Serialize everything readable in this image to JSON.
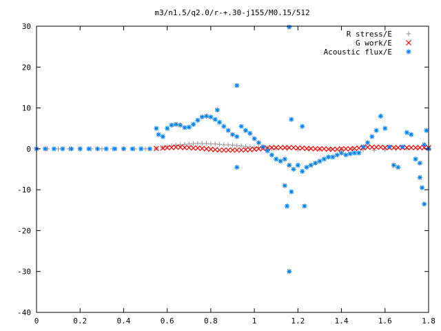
{
  "chart_data": {
    "type": "scatter",
    "title": "m3/n1.5/q2.0/r-+.30-j155/M0.15/512",
    "xlabel": "",
    "ylabel": "",
    "xlim": [
      0,
      1.8
    ],
    "ylim": [
      -40,
      30
    ],
    "x_ticks": [
      "0",
      "0.2",
      "0.4",
      "0.6",
      "0.8",
      "1",
      "1.2",
      "1.4",
      "1.6",
      "1.8"
    ],
    "x_tick_values": [
      0,
      0.2,
      0.4,
      0.6,
      0.8,
      1.0,
      1.2,
      1.4,
      1.6,
      1.8
    ],
    "y_ticks": [
      "30",
      "20",
      "10",
      "0",
      "-10",
      "-20",
      "-30",
      "-40"
    ],
    "y_tick_values": [
      30,
      20,
      10,
      0,
      -10,
      -20,
      -30,
      -40
    ],
    "grid": false,
    "legend_position": "top-right",
    "series": [
      {
        "name": "R stress/E",
        "marker": "+",
        "color": "#a0a0a0",
        "points": [
          [
            0.0,
            0
          ],
          [
            0.05,
            0
          ],
          [
            0.1,
            0
          ],
          [
            0.15,
            0
          ],
          [
            0.2,
            0
          ],
          [
            0.25,
            0
          ],
          [
            0.3,
            0
          ],
          [
            0.35,
            0
          ],
          [
            0.4,
            0
          ],
          [
            0.45,
            0
          ],
          [
            0.5,
            0
          ],
          [
            0.55,
            0.1
          ],
          [
            0.58,
            0.3
          ],
          [
            0.6,
            0.5
          ],
          [
            0.62,
            0.7
          ],
          [
            0.64,
            0.9
          ],
          [
            0.66,
            1.0
          ],
          [
            0.68,
            1.1
          ],
          [
            0.7,
            1.2
          ],
          [
            0.72,
            1.3
          ],
          [
            0.74,
            1.3
          ],
          [
            0.76,
            1.3
          ],
          [
            0.78,
            1.3
          ],
          [
            0.8,
            1.2
          ],
          [
            0.82,
            1.2
          ],
          [
            0.84,
            1.1
          ],
          [
            0.86,
            1.0
          ],
          [
            0.88,
            1.0
          ],
          [
            0.9,
            0.9
          ],
          [
            0.92,
            0.8
          ],
          [
            0.94,
            0.7
          ],
          [
            0.96,
            0.6
          ],
          [
            0.98,
            0.5
          ],
          [
            1.0,
            0.4
          ],
          [
            1.02,
            0.3
          ],
          [
            1.04,
            0.2
          ],
          [
            1.06,
            0.2
          ],
          [
            1.08,
            0.1
          ],
          [
            1.1,
            0.1
          ],
          [
            1.15,
            0.0
          ],
          [
            1.2,
            -0.1
          ],
          [
            1.25,
            -0.1
          ],
          [
            1.3,
            -0.1
          ],
          [
            1.35,
            -0.1
          ],
          [
            1.4,
            -0.1
          ],
          [
            1.45,
            0.0
          ],
          [
            1.5,
            -0.2
          ],
          [
            1.55,
            -0.3
          ],
          [
            1.6,
            -0.2
          ],
          [
            1.65,
            0.0
          ],
          [
            1.7,
            0.1
          ],
          [
            1.75,
            0.1
          ],
          [
            1.8,
            0.1
          ]
        ]
      },
      {
        "name": "G work/E",
        "marker": "x",
        "color": "#ff0000",
        "points": [
          [
            0.55,
            0.1
          ],
          [
            0.58,
            0.2
          ],
          [
            0.6,
            0.3
          ],
          [
            0.62,
            0.3
          ],
          [
            0.64,
            0.4
          ],
          [
            0.66,
            0.4
          ],
          [
            0.68,
            0.3
          ],
          [
            0.7,
            0.3
          ],
          [
            0.72,
            0.2
          ],
          [
            0.74,
            0.2
          ],
          [
            0.76,
            0.1
          ],
          [
            0.78,
            0.0
          ],
          [
            0.8,
            -0.1
          ],
          [
            0.82,
            -0.2
          ],
          [
            0.84,
            -0.3
          ],
          [
            0.86,
            -0.3
          ],
          [
            0.88,
            -0.3
          ],
          [
            0.9,
            -0.3
          ],
          [
            0.92,
            -0.3
          ],
          [
            0.94,
            -0.3
          ],
          [
            0.96,
            -0.2
          ],
          [
            0.98,
            -0.2
          ],
          [
            1.0,
            -0.1
          ],
          [
            1.02,
            0.0
          ],
          [
            1.04,
            0.1
          ],
          [
            1.06,
            0.2
          ],
          [
            1.08,
            0.3
          ],
          [
            1.1,
            0.3
          ],
          [
            1.12,
            0.3
          ],
          [
            1.14,
            0.3
          ],
          [
            1.16,
            0.3
          ],
          [
            1.18,
            0.3
          ],
          [
            1.2,
            0.2
          ],
          [
            1.22,
            0.2
          ],
          [
            1.24,
            0.1
          ],
          [
            1.26,
            0.1
          ],
          [
            1.28,
            0.0
          ],
          [
            1.3,
            0.0
          ],
          [
            1.32,
            0.0
          ],
          [
            1.34,
            -0.1
          ],
          [
            1.36,
            -0.1
          ],
          [
            1.38,
            -0.1
          ],
          [
            1.4,
            0.0
          ],
          [
            1.42,
            0.0
          ],
          [
            1.44,
            0.0
          ],
          [
            1.46,
            0.1
          ],
          [
            1.48,
            0.2
          ],
          [
            1.5,
            0.3
          ],
          [
            1.52,
            0.4
          ],
          [
            1.54,
            0.4
          ],
          [
            1.56,
            0.4
          ],
          [
            1.58,
            0.4
          ],
          [
            1.6,
            0.3
          ],
          [
            1.62,
            0.3
          ],
          [
            1.64,
            0.3
          ],
          [
            1.66,
            0.3
          ],
          [
            1.68,
            0.3
          ],
          [
            1.7,
            0.3
          ],
          [
            1.72,
            0.3
          ],
          [
            1.74,
            0.3
          ],
          [
            1.76,
            0.3
          ],
          [
            1.78,
            0.3
          ],
          [
            1.8,
            0.3
          ]
        ]
      },
      {
        "name": "Acoustic flux/E",
        "marker": "*",
        "color": "#0080ff",
        "points": [
          [
            0.0,
            0
          ],
          [
            0.04,
            0
          ],
          [
            0.08,
            0
          ],
          [
            0.12,
            0
          ],
          [
            0.16,
            0
          ],
          [
            0.2,
            0
          ],
          [
            0.24,
            0
          ],
          [
            0.28,
            0
          ],
          [
            0.32,
            0
          ],
          [
            0.36,
            0
          ],
          [
            0.4,
            0
          ],
          [
            0.44,
            0
          ],
          [
            0.48,
            0
          ],
          [
            0.52,
            0
          ],
          [
            0.55,
            5.0
          ],
          [
            0.56,
            3.5
          ],
          [
            0.58,
            3.0
          ],
          [
            0.6,
            5.0
          ],
          [
            0.62,
            5.8
          ],
          [
            0.64,
            6.0
          ],
          [
            0.66,
            5.8
          ],
          [
            0.68,
            5.2
          ],
          [
            0.7,
            5.3
          ],
          [
            0.72,
            6.0
          ],
          [
            0.74,
            7.0
          ],
          [
            0.76,
            7.8
          ],
          [
            0.78,
            8.0
          ],
          [
            0.8,
            7.8
          ],
          [
            0.82,
            7.2
          ],
          [
            0.84,
            6.5
          ],
          [
            0.86,
            5.5
          ],
          [
            0.88,
            4.5
          ],
          [
            0.9,
            3.5
          ],
          [
            0.92,
            3.0
          ],
          [
            0.94,
            5.5
          ],
          [
            0.96,
            4.5
          ],
          [
            0.98,
            3.8
          ],
          [
            1.0,
            2.5
          ],
          [
            1.02,
            1.5
          ],
          [
            1.04,
            0.5
          ],
          [
            1.06,
            -0.5
          ],
          [
            1.08,
            -1.5
          ],
          [
            1.1,
            -2.5
          ],
          [
            1.12,
            -3.0
          ],
          [
            1.14,
            -2.5
          ],
          [
            1.16,
            -4.0
          ],
          [
            1.18,
            -5.0
          ],
          [
            1.2,
            -4.0
          ],
          [
            1.22,
            -5.5
          ],
          [
            1.24,
            -4.5
          ],
          [
            1.26,
            -4.0
          ],
          [
            1.28,
            -3.5
          ],
          [
            1.3,
            -3.0
          ],
          [
            1.32,
            -2.5
          ],
          [
            1.34,
            -2.0
          ],
          [
            1.36,
            -2.0
          ],
          [
            1.38,
            -1.5
          ],
          [
            1.4,
            -1.0
          ],
          [
            1.42,
            -1.5
          ],
          [
            1.44,
            -1.2
          ],
          [
            1.46,
            -1.0
          ],
          [
            1.48,
            -1.0
          ],
          [
            1.5,
            0.5
          ],
          [
            1.52,
            1.5
          ],
          [
            1.54,
            3.0
          ],
          [
            1.56,
            4.5
          ],
          [
            1.58,
            8.0
          ],
          [
            1.6,
            5.0
          ],
          [
            1.62,
            0.5
          ],
          [
            1.64,
            -4.0
          ],
          [
            1.66,
            -4.5
          ],
          [
            1.68,
            0.5
          ],
          [
            1.7,
            4.0
          ],
          [
            1.72,
            3.5
          ],
          [
            1.74,
            -2.5
          ],
          [
            1.76,
            -3.5
          ],
          [
            1.78,
            1.0
          ],
          [
            1.8,
            0.0
          ],
          [
            1.16,
            29.8
          ],
          [
            1.16,
            -30.0
          ],
          [
            0.92,
            15.5
          ],
          [
            0.83,
            9.5
          ],
          [
            1.17,
            7.2
          ],
          [
            1.22,
            5.5
          ],
          [
            1.15,
            -14.0
          ],
          [
            1.23,
            -14.0
          ],
          [
            1.17,
            -10.5
          ],
          [
            1.14,
            -9.0
          ],
          [
            0.92,
            -4.5
          ],
          [
            1.78,
            -13.5
          ],
          [
            1.77,
            -9.5
          ],
          [
            1.76,
            -7.0
          ],
          [
            1.79,
            4.5
          ]
        ]
      }
    ]
  }
}
